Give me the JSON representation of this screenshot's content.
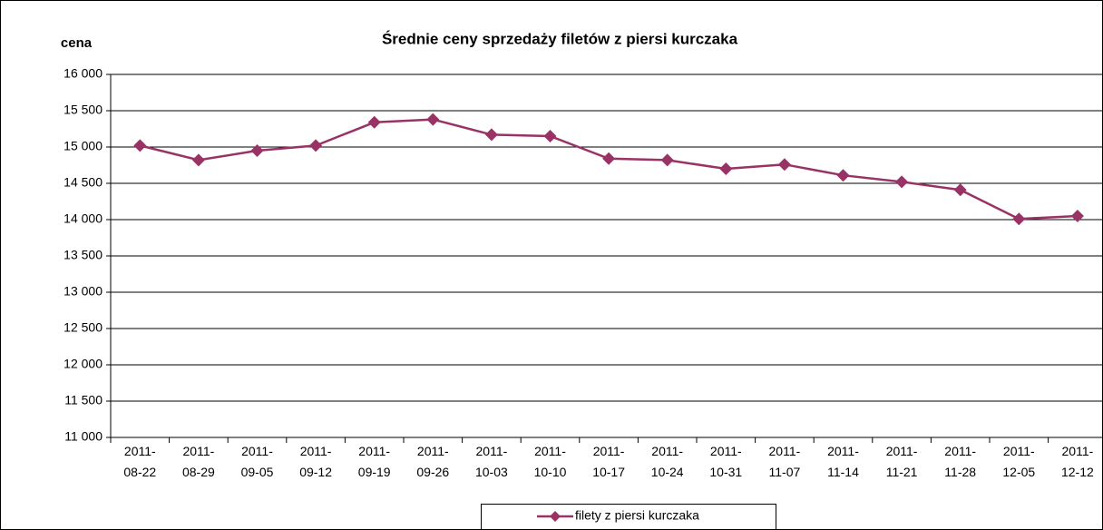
{
  "chart_data": {
    "type": "line",
    "title": "Średnie ceny sprzedaży filetów z piersi kurczaka",
    "y_label": "cena",
    "categories": [
      "2011-08-22",
      "2011-08-29",
      "2011-09-05",
      "2011-09-12",
      "2011-09-19",
      "2011-09-26",
      "2011-10-03",
      "2011-10-10",
      "2011-10-17",
      "2011-10-24",
      "2011-10-31",
      "2011-11-07",
      "2011-11-14",
      "2011-11-21",
      "2011-11-28",
      "2011-12-05",
      "2011-12-12"
    ],
    "series": [
      {
        "name": "filety z piersi kurczaka",
        "color": "#993366",
        "values": [
          15020,
          14820,
          14950,
          15020,
          15340,
          15380,
          15170,
          15150,
          14840,
          14820,
          14700,
          14760,
          14610,
          14520,
          14410,
          14010,
          14050
        ]
      }
    ],
    "ylim": [
      11000,
      16000
    ],
    "yticks": [
      {
        "value": 11000,
        "label": "11 000"
      },
      {
        "value": 11500,
        "label": "11 500"
      },
      {
        "value": 12000,
        "label": "12 000"
      },
      {
        "value": 12500,
        "label": "12 500"
      },
      {
        "value": 13000,
        "label": "13 000"
      },
      {
        "value": 13500,
        "label": "13 500"
      },
      {
        "value": 14000,
        "label": "14 000"
      },
      {
        "value": 14500,
        "label": "14 500"
      },
      {
        "value": 15000,
        "label": "15 000"
      },
      {
        "value": 15500,
        "label": "15 500"
      },
      {
        "value": 16000,
        "label": "16 000"
      }
    ],
    "grid": true,
    "legend": "bottom"
  }
}
